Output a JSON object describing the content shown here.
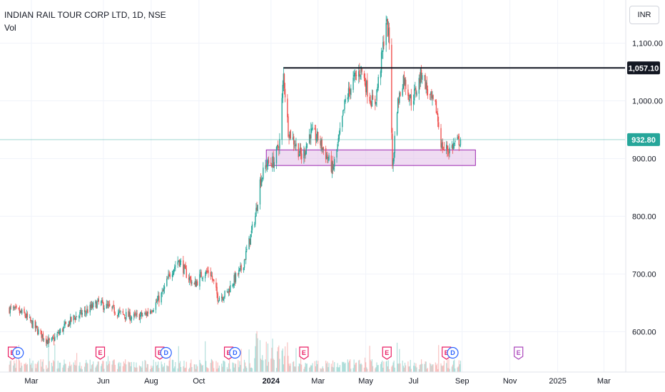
{
  "legend": {
    "symbol_title": "INDIAN RAIL TOUR CORP LTD, 1D, NSE",
    "volume_label": "Vol"
  },
  "currency_button": "INR",
  "colors": {
    "up": "#26a69a",
    "down": "#ef5350",
    "resistance_line": "#131722",
    "support_zone_fill": "#e1bee7",
    "support_zone_border": "#9c27b0",
    "last_price_label": "#26a69a",
    "earnings_badge": "#e91e63",
    "dividend_badge": "#2962ff",
    "future_earnings_badge": "#ab47bc"
  },
  "chart_data": {
    "type": "candlestick",
    "title": "INDIAN RAIL TOUR CORP LTD, 1D, NSE",
    "y_axis": {
      "ticks": [
        600,
        700,
        800,
        900,
        1000,
        1100
      ],
      "tick_labels": [
        "600.00",
        "700.00",
        "800.00",
        "900.00",
        "1,000.00",
        "1,100.00"
      ],
      "range": [
        530,
        1160
      ],
      "position": "right"
    },
    "x_axis": {
      "tick_labels": [
        "Mar",
        "Jun",
        "Aug",
        "Oct",
        "2024",
        "Mar",
        "May",
        "Jul",
        "Sep",
        "Nov",
        "2025",
        "Mar"
      ],
      "bold_labels": [
        "2024"
      ]
    },
    "price_path": [
      [
        "2023-02-01",
        640
      ],
      [
        "2023-02-20",
        630
      ],
      [
        "2023-03-10",
        600
      ],
      [
        "2023-03-25",
        580
      ],
      [
        "2023-04-10",
        605
      ],
      [
        "2023-04-25",
        625
      ],
      [
        "2023-05-10",
        635
      ],
      [
        "2023-05-25",
        650
      ],
      [
        "2023-06-10",
        640
      ],
      [
        "2023-06-25",
        630
      ],
      [
        "2023-07-10",
        625
      ],
      [
        "2023-07-25",
        630
      ],
      [
        "2023-08-05",
        645
      ],
      [
        "2023-08-15",
        665
      ],
      [
        "2023-08-25",
        700
      ],
      [
        "2023-09-05",
        725
      ],
      [
        "2023-09-15",
        700
      ],
      [
        "2023-09-25",
        680
      ],
      [
        "2023-10-05",
        700
      ],
      [
        "2023-10-15",
        705
      ],
      [
        "2023-10-25",
        660
      ],
      [
        "2023-11-05",
        665
      ],
      [
        "2023-11-15",
        690
      ],
      [
        "2023-11-25",
        710
      ],
      [
        "2023-12-05",
        760
      ],
      [
        "2023-12-12",
        800
      ],
      [
        "2023-12-18",
        860
      ],
      [
        "2023-12-26",
        890
      ],
      [
        "2024-01-05",
        895
      ],
      [
        "2024-01-12",
        930
      ],
      [
        "2024-01-17",
        1045
      ],
      [
        "2024-01-23",
        950
      ],
      [
        "2024-02-01",
        925
      ],
      [
        "2024-02-10",
        900
      ],
      [
        "2024-02-20",
        945
      ],
      [
        "2024-03-01",
        935
      ],
      [
        "2024-03-10",
        910
      ],
      [
        "2024-03-20",
        880
      ],
      [
        "2024-03-28",
        935
      ],
      [
        "2024-04-05",
        1000
      ],
      [
        "2024-04-15",
        1035
      ],
      [
        "2024-04-25",
        1055
      ],
      [
        "2024-05-05",
        1010
      ],
      [
        "2024-05-12",
        990
      ],
      [
        "2024-05-20",
        1060
      ],
      [
        "2024-05-27",
        1140
      ],
      [
        "2024-06-01",
        1095
      ],
      [
        "2024-06-04",
        880
      ],
      [
        "2024-06-10",
        990
      ],
      [
        "2024-06-18",
        1040
      ],
      [
        "2024-06-28",
        1000
      ],
      [
        "2024-07-05",
        1020
      ],
      [
        "2024-07-12",
        1052
      ],
      [
        "2024-07-20",
        1010
      ],
      [
        "2024-07-30",
        985
      ],
      [
        "2024-08-06",
        920
      ],
      [
        "2024-08-15",
        915
      ],
      [
        "2024-08-22",
        925
      ],
      [
        "2024-08-30",
        932.8
      ]
    ],
    "volume_note": "Daily volume histogram along bottom, colored by candle direction",
    "annotations": {
      "resistance_line": {
        "price": 1057.1,
        "label": "1,057.10",
        "start": "2024-01-17"
      },
      "support_zone": {
        "low": 888,
        "high": 915,
        "start": "2023-12-26",
        "end": "2024-09-18"
      },
      "last_price": {
        "price": 932.8,
        "label": "932.80"
      }
    },
    "events": [
      {
        "date": "2023-02-05",
        "kind": "E"
      },
      {
        "date": "2023-02-12",
        "kind": "D"
      },
      {
        "date": "2023-05-28",
        "kind": "E"
      },
      {
        "date": "2023-08-12",
        "kind": "E"
      },
      {
        "date": "2023-08-20",
        "kind": "D"
      },
      {
        "date": "2023-11-08",
        "kind": "E"
      },
      {
        "date": "2023-11-16",
        "kind": "D"
      },
      {
        "date": "2024-02-12",
        "kind": "E"
      },
      {
        "date": "2024-05-28",
        "kind": "E"
      },
      {
        "date": "2024-08-12",
        "kind": "E"
      },
      {
        "date": "2024-08-20",
        "kind": "D"
      },
      {
        "date": "2024-11-12",
        "kind": "E",
        "future": true
      }
    ]
  }
}
